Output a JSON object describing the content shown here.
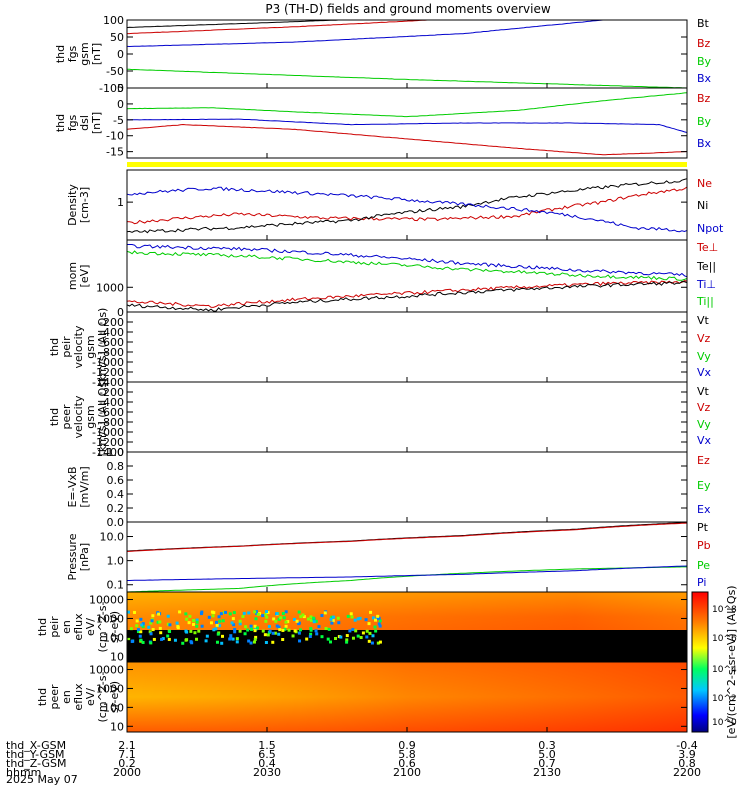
{
  "title": "P3 (TH-D) fields and ground moments overview",
  "colors": {
    "black": "#000000",
    "red": "#cc0000",
    "green": "#00cc00",
    "blue": "#0000cc",
    "yellow": "#ffff00"
  },
  "chart_data": [
    {
      "type": "line",
      "panel": "fgs_gsm",
      "ylabel": [
        "thd",
        "fgs",
        "gsm",
        "[nT]"
      ],
      "ylim": [
        -100,
        100
      ],
      "yticks": [
        100,
        50,
        0,
        -50,
        -100
      ],
      "series": [
        {
          "name": "Bt",
          "color": "#000000",
          "x": [
            0,
            0.3,
            0.6,
            1.0
          ],
          "y": [
            78,
            95,
            115,
            140
          ]
        },
        {
          "name": "Bz",
          "color": "#cc0000",
          "x": [
            0,
            0.3,
            0.6,
            1.0
          ],
          "y": [
            60,
            80,
            105,
            130
          ]
        },
        {
          "name": "By",
          "color": "#00cc00",
          "x": [
            0,
            0.25,
            0.5,
            0.7,
            1.0
          ],
          "y": [
            -45,
            -60,
            -75,
            -85,
            -100
          ]
        },
        {
          "name": "Bx",
          "color": "#0000cc",
          "x": [
            0,
            0.3,
            0.6,
            0.85,
            1.0
          ],
          "y": [
            22,
            35,
            60,
            100,
            130
          ]
        }
      ]
    },
    {
      "type": "line",
      "panel": "fgs_dsl",
      "ylabel": [
        "thd",
        "fgs",
        "dsl",
        "[nT]"
      ],
      "ylim": [
        -17,
        5
      ],
      "yticks": [
        5,
        0,
        -5,
        -10,
        -15
      ],
      "series": [
        {
          "name": "Bz",
          "color": "#cc0000",
          "x": [
            0,
            0.1,
            0.3,
            0.5,
            0.7,
            0.85,
            1.0
          ],
          "y": [
            -8,
            -6.5,
            -8,
            -11,
            -14,
            -16,
            -15
          ]
        },
        {
          "name": "By",
          "color": "#00cc00",
          "x": [
            0,
            0.15,
            0.3,
            0.5,
            0.7,
            0.85,
            1.0
          ],
          "y": [
            -1.5,
            -1.2,
            -2.5,
            -4,
            -2,
            1,
            3.5
          ]
        },
        {
          "name": "Bx",
          "color": "#0000cc",
          "x": [
            0,
            0.2,
            0.4,
            0.6,
            0.8,
            0.95,
            1.0
          ],
          "y": [
            -5,
            -4.8,
            -6.5,
            -6,
            -6,
            -6.5,
            -9
          ]
        }
      ]
    },
    {
      "type": "line",
      "panel": "density",
      "ylabel": [
        "Density",
        "[cm-3]"
      ],
      "yscale": "log",
      "ylim": [
        0.15,
        5
      ],
      "yticks": [
        1
      ],
      "series": [
        {
          "name": "Ne",
          "color": "#cc0000",
          "x": [
            0,
            0.1,
            0.2,
            0.35,
            0.55,
            0.7,
            0.85,
            1.0
          ],
          "y": [
            0.35,
            0.45,
            0.55,
            0.45,
            0.42,
            0.5,
            1.0,
            2.0
          ]
        },
        {
          "name": "Ni",
          "color": "#000000",
          "x": [
            0,
            0.2,
            0.4,
            0.6,
            0.8,
            1.0
          ],
          "y": [
            0.22,
            0.28,
            0.4,
            0.8,
            1.8,
            3.0
          ]
        },
        {
          "name": "Npot",
          "color": "#0000cc",
          "x": [
            0,
            0.15,
            0.35,
            0.55,
            0.75,
            0.9,
            1.0
          ],
          "y": [
            1.5,
            2.0,
            1.5,
            1.0,
            0.6,
            0.28,
            0.24
          ]
        }
      ]
    },
    {
      "type": "line",
      "panel": "temperature",
      "ylabel": [
        "mom",
        "[eV]"
      ],
      "yscale": "log",
      "ylim": [
        300,
        10000
      ],
      "yticks": [
        1000
      ],
      "series": [
        {
          "name": "Te⊥",
          "color": "#cc0000",
          "x": [
            0,
            0.15,
            0.3,
            0.5,
            0.7,
            0.85,
            1.0
          ],
          "y": [
            500,
            400,
            550,
            750,
            1000,
            1200,
            1300
          ]
        },
        {
          "name": "Te||",
          "color": "#000000",
          "x": [
            0,
            0.15,
            0.3,
            0.5,
            0.7,
            0.85,
            1.0
          ],
          "y": [
            420,
            330,
            480,
            650,
            900,
            1100,
            1250
          ]
        },
        {
          "name": "Ti⊥",
          "color": "#0000cc",
          "x": [
            0,
            0.2,
            0.4,
            0.6,
            0.8,
            1.0
          ],
          "y": [
            7500,
            6500,
            4800,
            3200,
            2300,
            1800
          ]
        },
        {
          "name": "Ti||",
          "color": "#00cc00",
          "x": [
            0,
            0.2,
            0.4,
            0.6,
            0.8,
            1.0
          ],
          "y": [
            5500,
            4600,
            3400,
            2400,
            1800,
            1500
          ]
        }
      ]
    },
    {
      "type": "line",
      "panel": "peir_velocity",
      "ylabel": [
        "thd",
        "peir",
        "velocity",
        "gsm",
        "[km/s] (All Qs)"
      ],
      "ylim": [
        -1400,
        0
      ],
      "yticks": [
        0,
        -200,
        -400,
        -600,
        -800,
        -1000,
        -1200,
        -1400
      ],
      "legend": [
        "Vt",
        "Vz",
        "Vy",
        "Vx"
      ],
      "series": []
    },
    {
      "type": "line",
      "panel": "peer_velocity",
      "ylabel": [
        "thd",
        "peer",
        "velocity",
        "gsm",
        "[km/s] (All Qs)"
      ],
      "ylim": [
        -1400,
        0
      ],
      "yticks": [
        -200,
        -400,
        -600,
        -800,
        -1000,
        -1200,
        -1400
      ],
      "legend": [
        "Vt",
        "Vz",
        "Vy",
        "Vx"
      ],
      "series": []
    },
    {
      "type": "line",
      "panel": "efield",
      "ylabel": [
        "E=-VxB",
        "[mV/m]"
      ],
      "ylim": [
        0,
        1
      ],
      "yticks": [
        1.0,
        0.8,
        0.6,
        0.4,
        0.2,
        0.0
      ],
      "legend": [
        "Ez",
        "Ey",
        "Ex"
      ],
      "series": []
    },
    {
      "type": "line",
      "panel": "pressure",
      "ylabel": [
        "Pressure",
        "[nPa]"
      ],
      "yscale": "log",
      "ylim": [
        0.05,
        40
      ],
      "yticks": [
        10.0,
        1.0,
        0.1
      ],
      "series": [
        {
          "name": "Pt",
          "color": "#000000",
          "x": [
            0,
            0.2,
            0.4,
            0.6,
            0.8,
            1.0
          ],
          "y": [
            2.5,
            4.0,
            6.5,
            11,
            20,
            38
          ]
        },
        {
          "name": "Pb",
          "color": "#cc0000",
          "x": [
            0,
            0.2,
            0.4,
            0.6,
            0.8,
            1.0
          ],
          "y": [
            2.4,
            3.9,
            6.3,
            10.5,
            19,
            36
          ]
        },
        {
          "name": "Pe",
          "color": "#00cc00",
          "x": [
            0,
            0.2,
            0.4,
            0.6,
            0.8,
            1.0
          ],
          "y": [
            0.05,
            0.07,
            0.15,
            0.3,
            0.45,
            0.55
          ]
        },
        {
          "name": "Pi",
          "color": "#0000cc",
          "x": [
            0,
            0.2,
            0.4,
            0.6,
            0.8,
            1.0
          ],
          "y": [
            0.15,
            0.18,
            0.21,
            0.27,
            0.38,
            0.6
          ]
        }
      ]
    },
    {
      "type": "heatmap",
      "panel": "peir_en_eflux",
      "ylabel": [
        "thd",
        "peir",
        "en",
        "eflux",
        "eV/",
        "(cm^2-s-",
        "sr-eV)"
      ],
      "yscale": "log",
      "ylim": [
        5,
        25000
      ],
      "yticks": [
        "10000",
        "1000",
        "100",
        "10"
      ]
    },
    {
      "type": "heatmap",
      "panel": "peer_en_eflux",
      "ylabel": [
        "thd",
        "peer",
        "en",
        "eflux",
        "eV/",
        "(cm^2-s-",
        "sr-eV)"
      ],
      "yscale": "log",
      "ylim": [
        5,
        25000
      ],
      "yticks": [
        "10000",
        "1000",
        "100",
        "10"
      ]
    }
  ],
  "colorbar": {
    "label": "[eV/(cm^2-s-sr-eV)] (All Qs)",
    "ticks": [
      "10^8",
      "10^6",
      "10^4",
      "10^2",
      "10^0"
    ]
  },
  "xaxis": {
    "rows": [
      {
        "label": "thd_X-GSM",
        "values": [
          "2.1",
          "1.5",
          "0.9",
          "0.3",
          "-0.4"
        ]
      },
      {
        "label": "thd_Y-GSM",
        "values": [
          "7.1",
          "6.5",
          "5.8",
          "5.0",
          "3.9"
        ]
      },
      {
        "label": "thd_Z-GSM",
        "values": [
          "0.2",
          "0.4",
          "0.6",
          "0.7",
          "0.8"
        ]
      },
      {
        "label": "hhmm",
        "values": [
          "2000",
          "2030",
          "2100",
          "2130",
          "2200"
        ]
      }
    ],
    "date": "2025 May 07"
  }
}
